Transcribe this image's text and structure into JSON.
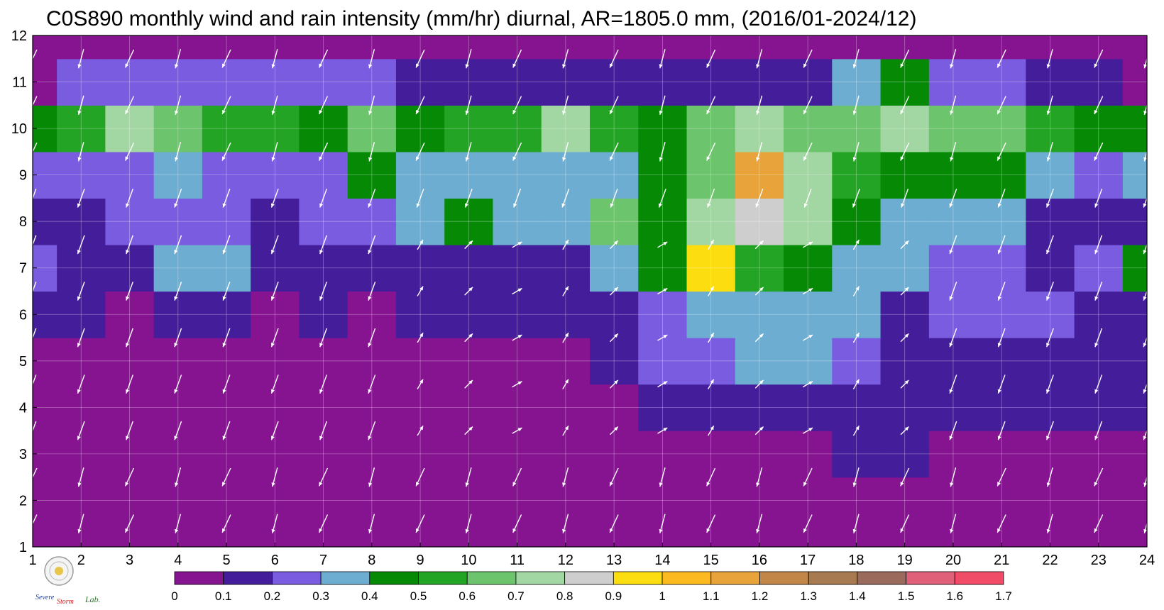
{
  "chart_data": {
    "type": "heatmap",
    "title": "C0S890 monthly wind and rain intensity (mm/hr) diurnal, AR=1805.0 mm, (2016/01-2024/12)",
    "xlabel": "",
    "ylabel": "",
    "x_ticks": [
      "1",
      "2",
      "3",
      "4",
      "5",
      "6",
      "7",
      "8",
      "9",
      "10",
      "11",
      "12",
      "13",
      "14",
      "15",
      "16",
      "17",
      "18",
      "19",
      "20",
      "21",
      "22",
      "23",
      "24"
    ],
    "y_ticks": [
      "1",
      "2",
      "3",
      "4",
      "5",
      "6",
      "7",
      "8",
      "9",
      "10",
      "11",
      "12"
    ],
    "xlim": [
      1,
      24
    ],
    "ylim": [
      1,
      12
    ],
    "colorbar": {
      "levels": [
        "0",
        "0.1",
        "0.2",
        "0.3",
        "0.4",
        "0.5",
        "0.6",
        "0.7",
        "0.8",
        "0.9",
        "1",
        "1.1",
        "1.2",
        "1.3",
        "1.4",
        "1.5",
        "1.6",
        "1.7"
      ],
      "colors": [
        "#861490",
        "#441e9a",
        "#7a5ce0",
        "#6dadd2",
        "#068a06",
        "#24a424",
        "#6cc46c",
        "#a2d6a2",
        "#cecece",
        "#fcde10",
        "#fdba20",
        "#e8a43a",
        "#c28748",
        "#a77a50",
        "#9a6b5c",
        "#e0607a",
        "#f04c68"
      ]
    },
    "month_profiles": {
      "x": [
        1,
        2,
        3,
        4,
        5,
        6,
        7,
        8,
        9,
        10,
        11,
        12,
        13,
        14,
        15,
        16,
        17,
        18,
        19,
        20,
        21,
        22,
        23,
        24
      ],
      "month_1": [
        0.05,
        0.05,
        0.05,
        0.05,
        0.05,
        0.05,
        0.05,
        0.05,
        0.05,
        0.05,
        0.05,
        0.05,
        0.05,
        0.05,
        0.05,
        0.05,
        0.05,
        0.05,
        0.05,
        0.05,
        0.05,
        0.05,
        0.05,
        0.05
      ],
      "month_2": [
        0.05,
        0.05,
        0.05,
        0.05,
        0.05,
        0.05,
        0.05,
        0.05,
        0.05,
        0.05,
        0.05,
        0.05,
        0.05,
        0.05,
        0.05,
        0.05,
        0.05,
        0.05,
        0.05,
        0.05,
        0.05,
        0.05,
        0.05,
        0.05
      ],
      "month_3": [
        0.05,
        0.05,
        0.05,
        0.05,
        0.05,
        0.05,
        0.05,
        0.05,
        0.05,
        0.05,
        0.05,
        0.05,
        0.05,
        0.05,
        0.05,
        0.05,
        0.05,
        0.15,
        0.15,
        0.05,
        0.05,
        0.05,
        0.05,
        0.05
      ],
      "month_4": [
        0.05,
        0.05,
        0.05,
        0.05,
        0.05,
        0.05,
        0.05,
        0.05,
        0.05,
        0.05,
        0.05,
        0.05,
        0.05,
        0.15,
        0.15,
        0.15,
        0.15,
        0.15,
        0.15,
        0.15,
        0.15,
        0.15,
        0.15,
        0.15
      ],
      "month_5": [
        0.05,
        0.05,
        0.05,
        0.05,
        0.05,
        0.05,
        0.05,
        0.05,
        0.05,
        0.05,
        0.05,
        0.05,
        0.15,
        0.25,
        0.25,
        0.35,
        0.35,
        0.25,
        0.15,
        0.15,
        0.15,
        0.15,
        0.15,
        0.15
      ],
      "month_6": [
        0.15,
        0.15,
        0.05,
        0.15,
        0.15,
        0.05,
        0.15,
        0.05,
        0.15,
        0.15,
        0.15,
        0.15,
        0.15,
        0.25,
        0.35,
        0.35,
        0.35,
        0.35,
        0.15,
        0.25,
        0.25,
        0.25,
        0.15,
        0.15
      ],
      "month_7": [
        0.25,
        0.15,
        0.15,
        0.35,
        0.35,
        0.15,
        0.15,
        0.15,
        0.15,
        0.15,
        0.15,
        0.15,
        0.35,
        0.45,
        0.95,
        0.55,
        0.45,
        0.35,
        0.35,
        0.25,
        0.25,
        0.15,
        0.25,
        0.45
      ],
      "month_8": [
        0.15,
        0.15,
        0.25,
        0.25,
        0.25,
        0.15,
        0.25,
        0.25,
        0.35,
        0.45,
        0.35,
        0.35,
        0.65,
        0.45,
        0.75,
        0.85,
        0.75,
        0.45,
        0.35,
        0.35,
        0.35,
        0.15,
        0.15,
        0.15
      ],
      "month_9": [
        0.25,
        0.25,
        0.25,
        0.35,
        0.25,
        0.25,
        0.25,
        0.45,
        0.35,
        0.35,
        0.35,
        0.35,
        0.35,
        0.45,
        0.65,
        1.15,
        0.75,
        0.55,
        0.45,
        0.45,
        0.45,
        0.35,
        0.25,
        0.35
      ],
      "month_10": [
        0.45,
        0.55,
        0.75,
        0.65,
        0.55,
        0.55,
        0.45,
        0.65,
        0.45,
        0.55,
        0.55,
        0.75,
        0.55,
        0.45,
        0.65,
        0.75,
        0.65,
        0.65,
        0.75,
        0.65,
        0.65,
        0.55,
        0.45,
        0.45
      ],
      "month_11": [
        0.05,
        0.25,
        0.25,
        0.25,
        0.25,
        0.25,
        0.25,
        0.25,
        0.15,
        0.15,
        0.15,
        0.15,
        0.15,
        0.15,
        0.15,
        0.15,
        0.15,
        0.35,
        0.45,
        0.25,
        0.25,
        0.15,
        0.15,
        0.05
      ],
      "month_12": [
        0.05,
        0.05,
        0.05,
        0.05,
        0.05,
        0.05,
        0.05,
        0.05,
        0.05,
        0.05,
        0.05,
        0.05,
        0.05,
        0.05,
        0.05,
        0.05,
        0.05,
        0.05,
        0.05,
        0.05,
        0.05,
        0.05,
        0.05,
        0.05
      ]
    },
    "wind_vectors": "white arrows on every hour × month grid node, mostly pointing down-left (north-easterly flow) with up-right / east-pointing arrows in afternoon hours of summer months",
    "grid": true,
    "legend": "horizontal colorbar below plot"
  },
  "logo": {
    "text_lines": [
      "Severe",
      "Storm",
      "Lab."
    ]
  }
}
